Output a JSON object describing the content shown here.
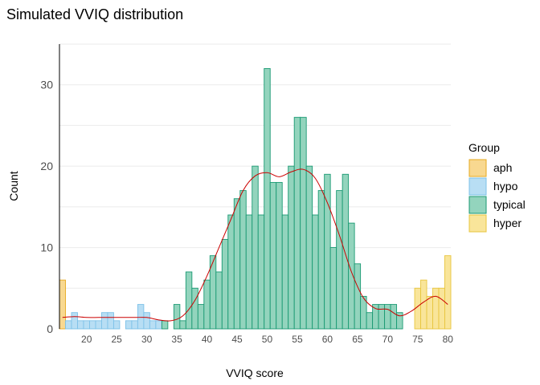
{
  "chart_data": {
    "type": "bar",
    "title": "Simulated VVIQ distribution",
    "xlabel": "VVIQ score",
    "ylabel": "Count",
    "xlim": [
      15.5,
      80.5
    ],
    "ylim": [
      0,
      35
    ],
    "x_ticks": [
      20,
      25,
      30,
      35,
      40,
      45,
      50,
      55,
      60,
      65,
      70,
      75,
      80
    ],
    "y_ticks": [
      0,
      10,
      20,
      30
    ],
    "grid": "horizontal",
    "legend": {
      "title": "Group",
      "position": "right",
      "entries": [
        "aph",
        "hypo",
        "typical",
        "hyper"
      ]
    },
    "colors": {
      "aph": {
        "fill": "#f8d890",
        "stroke": "#e6a91f"
      },
      "hypo": {
        "fill": "#b8def4",
        "stroke": "#7cc1e8"
      },
      "typical": {
        "fill": "#93d4bd",
        "stroke": "#1a9a73"
      },
      "hyper": {
        "fill": "#f9e59a",
        "stroke": "#e8c53e"
      },
      "density": "#cc0000"
    },
    "series": [
      {
        "name": "aph",
        "x": [
          16
        ],
        "values": [
          6
        ]
      },
      {
        "name": "hypo",
        "x": [
          17,
          18,
          19,
          20,
          21,
          22,
          23,
          24,
          25,
          26,
          27,
          28,
          29,
          30,
          31,
          32
        ],
        "values": [
          1,
          2,
          1,
          1,
          1,
          1,
          2,
          2,
          1,
          0,
          1,
          1,
          3,
          2,
          1,
          1
        ]
      },
      {
        "name": "typical",
        "x": [
          33,
          34,
          35,
          36,
          37,
          38,
          39,
          40,
          41,
          42,
          43,
          44,
          45,
          46,
          47,
          48,
          49,
          50,
          51,
          52,
          53,
          54,
          55,
          56,
          57,
          58,
          59,
          60,
          61,
          62,
          63,
          64,
          65,
          66,
          67,
          68,
          69,
          70,
          71,
          72
        ],
        "values": [
          1,
          0,
          3,
          1,
          7,
          5,
          3,
          6,
          9,
          7,
          11,
          14,
          16,
          17,
          14,
          20,
          14,
          32,
          18,
          18,
          14,
          20,
          26,
          26,
          20,
          14,
          17,
          19,
          10,
          17,
          19,
          13,
          8,
          4,
          2,
          3,
          3,
          3,
          3,
          2
        ]
      },
      {
        "name": "hyper",
        "x": [
          73,
          74,
          75,
          76,
          77,
          78,
          79,
          80
        ],
        "values": [
          0,
          0,
          5,
          6,
          4,
          5,
          5,
          9
        ]
      }
    ],
    "density_curve": {
      "x": [
        16,
        18,
        20,
        22,
        24,
        26,
        28,
        30,
        32,
        34,
        36,
        38,
        40,
        42,
        44,
        46,
        48,
        50,
        52,
        54,
        56,
        58,
        60,
        62,
        64,
        66,
        68,
        70,
        72,
        74,
        76,
        78,
        80
      ],
      "y": [
        1.4,
        1.5,
        1.4,
        1.4,
        1.4,
        1.4,
        1.4,
        1.4,
        1.1,
        1.0,
        1.6,
        3.5,
        6.5,
        10,
        13.5,
        17,
        18.8,
        19.2,
        18.7,
        19.3,
        19.6,
        18.5,
        15.5,
        11.5,
        7,
        3.8,
        2.5,
        2.4,
        1.6,
        2.2,
        3.3,
        4.0,
        3.0
      ]
    }
  }
}
